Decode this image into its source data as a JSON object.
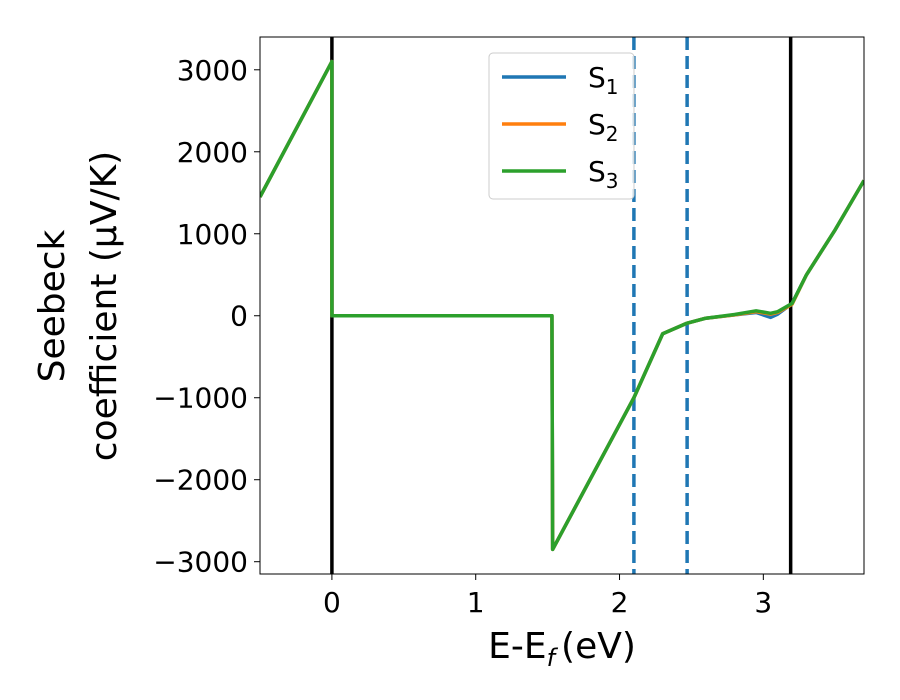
{
  "chart_data": {
    "type": "line",
    "xlabel": "E-E",
    "xlabel_sub": "f",
    "xlabel_unit": "(eV)",
    "ylabel_line1": "Seebeck",
    "ylabel_line2": "coefficient  (μV/K)",
    "xlim": [
      -0.5,
      3.7
    ],
    "ylim": [
      -3150,
      3400
    ],
    "xticks": [
      0,
      1,
      2,
      3
    ],
    "xtick_labels": [
      "0",
      "1",
      "2",
      "3"
    ],
    "yticks": [
      -3000,
      -2000,
      -1000,
      0,
      1000,
      2000,
      3000
    ],
    "ytick_labels": [
      "−3000",
      "−2000",
      "−1000",
      "0",
      "1000",
      "2000",
      "3000"
    ],
    "legend_position": "upper center",
    "series": [
      {
        "name": "S",
        "subscript": "1",
        "color": "#1f77b4",
        "x": [
          -0.5,
          0,
          0.0,
          1.53,
          1.535,
          2.1,
          2.3,
          2.47,
          2.6,
          2.8,
          2.95,
          3.05,
          3.1,
          3.2,
          3.3,
          3.5,
          3.7
        ],
        "y": [
          1450,
          3100,
          0,
          0,
          -2850,
          -1000,
          -220,
          -90,
          -30,
          10,
          40,
          -20,
          20,
          150,
          500,
          1050,
          1650
        ]
      },
      {
        "name": "S",
        "subscript": "2",
        "color": "#ff7f0e",
        "x": [
          -0.5,
          0,
          0.0,
          1.53,
          1.535,
          2.1,
          2.3,
          2.47,
          2.6,
          2.8,
          2.95,
          3.05,
          3.1,
          3.2,
          3.3,
          3.5,
          3.7
        ],
        "y": [
          1450,
          3100,
          0,
          0,
          -2850,
          -1000,
          -220,
          -90,
          -30,
          10,
          50,
          20,
          40,
          140,
          500,
          1050,
          1650
        ]
      },
      {
        "name": "S",
        "subscript": "3",
        "color": "#2ca02c",
        "x": [
          -0.5,
          0,
          0.0,
          1.53,
          1.535,
          2.1,
          2.3,
          2.47,
          2.6,
          2.8,
          2.95,
          3.05,
          3.1,
          3.2,
          3.3,
          3.5,
          3.7
        ],
        "y": [
          1450,
          3100,
          0,
          0,
          -2850,
          -1000,
          -220,
          -90,
          -30,
          15,
          60,
          30,
          50,
          150,
          500,
          1050,
          1650
        ]
      }
    ],
    "vlines": [
      {
        "x": 0,
        "color": "#000000",
        "style": "solid"
      },
      {
        "x": 3.19,
        "color": "#000000",
        "style": "solid"
      },
      {
        "x": 2.1,
        "color": "#1f77b4",
        "style": "dashed"
      },
      {
        "x": 2.47,
        "color": "#1f77b4",
        "style": "dashed"
      }
    ]
  }
}
